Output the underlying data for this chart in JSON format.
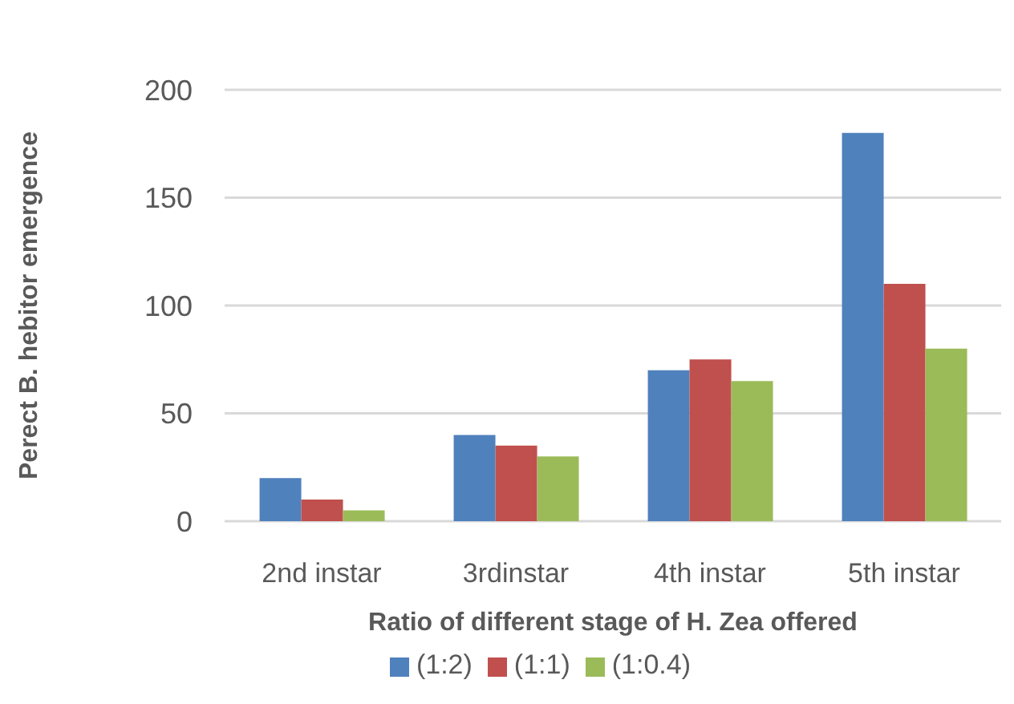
{
  "chart_data": {
    "type": "bar",
    "xlabel": "Ratio of different stage of H. Zea offered",
    "ylabel": "Perect B. hebitor emergence",
    "categories": [
      "2nd instar",
      "3rdinstar",
      "4th instar",
      "5th instar"
    ],
    "series": [
      {
        "name": "(1:2)",
        "color": "#4f81bd",
        "values": [
          20,
          40,
          70,
          180
        ]
      },
      {
        "name": "(1:1)",
        "color": "#c0504d",
        "values": [
          10,
          35,
          75,
          110
        ]
      },
      {
        "name": "(1:0.4)",
        "color": "#9bbb59",
        "values": [
          5,
          30,
          65,
          80
        ]
      }
    ],
    "ylim": [
      0,
      200
    ],
    "yticks": [
      0,
      50,
      100,
      150,
      200
    ],
    "grid": "y",
    "legend": "bottom"
  }
}
